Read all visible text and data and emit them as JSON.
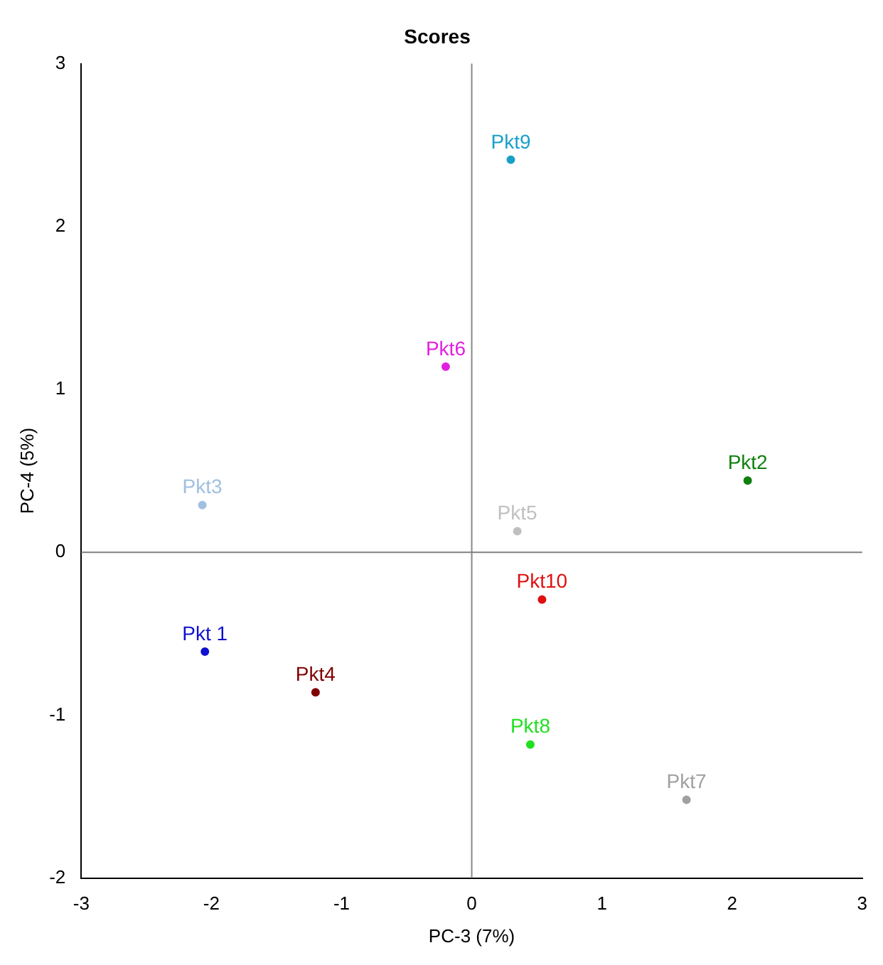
{
  "chart_data": {
    "type": "scatter",
    "title": "Scores",
    "xlabel": "PC-3 (7%)",
    "ylabel": "PC-4 (5%)",
    "xlim": [
      -3,
      3
    ],
    "xticks": [
      -3,
      -2,
      -1,
      0,
      1,
      2,
      3
    ],
    "ylim": [
      -2,
      3
    ],
    "yticks": [
      -2,
      -1,
      0,
      1,
      2,
      3
    ],
    "grid": false,
    "legend": false,
    "marker": "circle",
    "ref_lines": [
      {
        "axis": "x",
        "value": 0,
        "color": "#888888"
      },
      {
        "axis": "y",
        "value": 0,
        "color": "#808080"
      }
    ],
    "series": [
      {
        "name": "Pkt9",
        "color": "#1aa0c8",
        "x": [
          0.3
        ],
        "values": [
          2.41
        ]
      },
      {
        "name": "Pkt6",
        "color": "#e020e0",
        "x": [
          -0.2
        ],
        "values": [
          1.14
        ]
      },
      {
        "name": "Pkt2",
        "color": "#108010",
        "x": [
          2.12
        ],
        "values": [
          0.44
        ]
      },
      {
        "name": "Pkt3",
        "color": "#a0c0e0",
        "x": [
          -2.07
        ],
        "values": [
          0.29
        ]
      },
      {
        "name": "Pkt5",
        "color": "#c0c0c0",
        "x": [
          0.35
        ],
        "values": [
          0.13
        ]
      },
      {
        "name": "Pkt10",
        "color": "#e01010",
        "x": [
          0.54
        ],
        "values": [
          -0.29
        ]
      },
      {
        "name": "Pkt 1",
        "color": "#1010d0",
        "x": [
          -2.05
        ],
        "values": [
          -0.61
        ]
      },
      {
        "name": "Pkt4",
        "color": "#800000",
        "x": [
          -1.2
        ],
        "values": [
          -0.86
        ]
      },
      {
        "name": "Pkt8",
        "color": "#20e020",
        "x": [
          0.45
        ],
        "values": [
          -1.18
        ]
      },
      {
        "name": "Pkt7",
        "color": "#a0a0a0",
        "x": [
          1.65
        ],
        "values": [
          -1.52
        ]
      }
    ]
  }
}
